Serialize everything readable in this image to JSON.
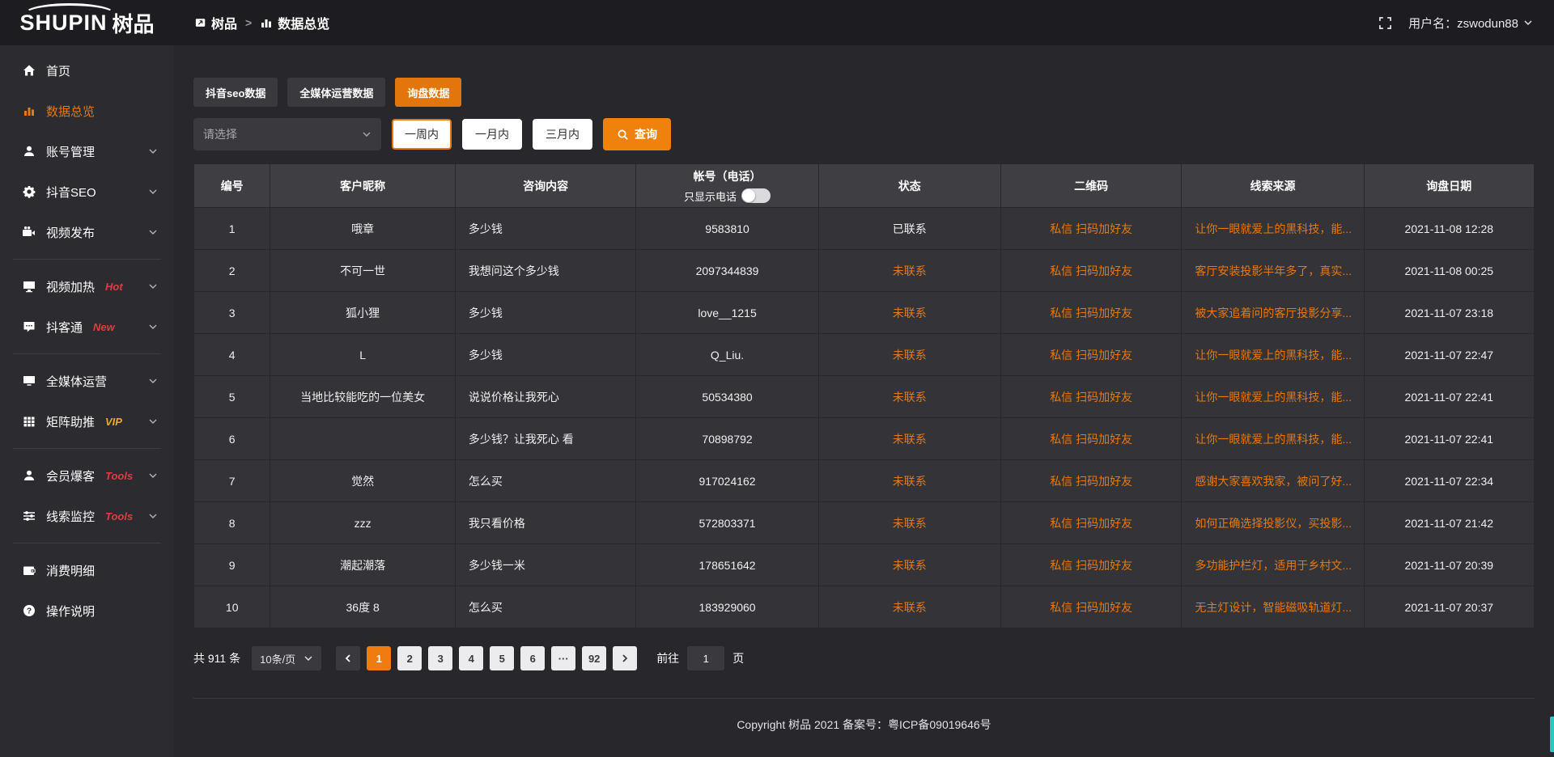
{
  "topbar": {
    "logo": {
      "en": "SHUPIN",
      "cn": "树品"
    },
    "breadcrumb": {
      "root": "树品",
      "separator": ">",
      "current": "数据总览"
    },
    "user_label": "用户名：zswodun88"
  },
  "sidebar": {
    "items": [
      {
        "type": "item",
        "label": "首页",
        "icon": "home-icon"
      },
      {
        "type": "item",
        "label": "数据总览",
        "icon": "bar-chart-icon",
        "active": true
      },
      {
        "type": "item",
        "label": "账号管理",
        "icon": "user-icon",
        "chevron": true
      },
      {
        "type": "item",
        "label": "抖音SEO",
        "icon": "gear-icon",
        "chevron": true
      },
      {
        "type": "item",
        "label": "视频发布",
        "icon": "video-camera-icon",
        "chevron": true
      },
      {
        "type": "divider"
      },
      {
        "type": "item",
        "label": "视频加热",
        "icon": "monitor-icon",
        "badge": "Hot",
        "badge_color": "#e03e3e",
        "chevron": true
      },
      {
        "type": "item",
        "label": "抖客通",
        "icon": "chat-icon",
        "badge": "New",
        "badge_color": "#e03e3e",
        "chevron": true
      },
      {
        "type": "divider"
      },
      {
        "type": "item",
        "label": "全媒体运营",
        "icon": "screen-icon",
        "chevron": true
      },
      {
        "type": "item",
        "label": "矩阵助推",
        "icon": "grid-icon",
        "badge": "VIP",
        "badge_color": "#eda82d",
        "chevron": true
      },
      {
        "type": "divider"
      },
      {
        "type": "item",
        "label": "会员爆客",
        "icon": "member-icon",
        "badge": "Tools",
        "badge_color": "#e03e3e",
        "chevron": true
      },
      {
        "type": "item",
        "label": "线索监控",
        "icon": "sliders-icon",
        "badge": "Tools",
        "badge_color": "#e03e3e",
        "chevron": true
      },
      {
        "type": "divider"
      },
      {
        "type": "item",
        "label": "消费明细",
        "icon": "wallet-icon"
      },
      {
        "type": "item",
        "label": "操作说明",
        "icon": "question-icon"
      }
    ]
  },
  "tabs": [
    {
      "label": "抖音seo数据",
      "active": false
    },
    {
      "label": "全媒体运营数据",
      "active": false
    },
    {
      "label": "询盘数据",
      "active": true
    }
  ],
  "filters": {
    "select_placeholder": "请选择",
    "ranges": [
      {
        "label": "一周内",
        "active": true
      },
      {
        "label": "一月内",
        "active": false
      },
      {
        "label": "三月内",
        "active": false
      }
    ],
    "query_label": "查询"
  },
  "table": {
    "columns": [
      "编号",
      "客户昵称",
      "咨询内容",
      "帐号（电话）",
      "状态",
      "二维码",
      "线索来源",
      "询盘日期"
    ],
    "phone_toggle_label": "只显示电话",
    "rows": [
      {
        "id": "1",
        "nickname": "哦章",
        "content": "多少钱",
        "account": "9583810",
        "status": "已联系",
        "contacted": true,
        "qr": "私信 扫码加好友",
        "source": "让你一眼就爱上的黑科技，能...",
        "date": "2021-11-08 12:28"
      },
      {
        "id": "2",
        "nickname": "不可一世",
        "content": "我想问这个多少钱",
        "account": "2097344839",
        "status": "未联系",
        "contacted": false,
        "qr": "私信 扫码加好友",
        "source": "客厅安装投影半年多了，真实...",
        "date": "2021-11-08 00:25"
      },
      {
        "id": "3",
        "nickname": "狐小狸",
        "content": "多少钱",
        "account": "love__1215",
        "status": "未联系",
        "contacted": false,
        "qr": "私信 扫码加好友",
        "source": "被大家追着问的客厅投影分享...",
        "date": "2021-11-07 23:18"
      },
      {
        "id": "4",
        "nickname": "L",
        "content": "多少钱",
        "account": "Q_Liu.",
        "status": "未联系",
        "contacted": false,
        "qr": "私信 扫码加好友",
        "source": "让你一眼就爱上的黑科技，能...",
        "date": "2021-11-07 22:47"
      },
      {
        "id": "5",
        "nickname": "当地比较能吃的一位美女",
        "content": "说说价格让我死心",
        "account": "50534380",
        "status": "未联系",
        "contacted": false,
        "qr": "私信 扫码加好友",
        "source": "让你一眼就爱上的黑科技，能...",
        "date": "2021-11-07 22:41"
      },
      {
        "id": "6",
        "nickname": "",
        "content": "多少钱？让我死心 看",
        "account": "70898792",
        "status": "未联系",
        "contacted": false,
        "qr": "私信 扫码加好友",
        "source": "让你一眼就爱上的黑科技，能...",
        "date": "2021-11-07 22:41"
      },
      {
        "id": "7",
        "nickname": "觉然",
        "content": "怎么买",
        "account": "917024162",
        "status": "未联系",
        "contacted": false,
        "qr": "私信 扫码加好友",
        "source": "感谢大家喜欢我家，被问了好...",
        "date": "2021-11-07 22:34"
      },
      {
        "id": "8",
        "nickname": "zzz",
        "content": "我只看价格",
        "account": "572803371",
        "status": "未联系",
        "contacted": false,
        "qr": "私信 扫码加好友",
        "source": "如何正确选择投影仪，买投影...",
        "date": "2021-11-07 21:42"
      },
      {
        "id": "9",
        "nickname": "潮起潮落",
        "content": "多少钱一米",
        "account": "178651642",
        "status": "未联系",
        "contacted": false,
        "qr": "私信 扫码加好友",
        "source": "多功能护栏灯，适用于乡村文...",
        "date": "2021-11-07 20:39"
      },
      {
        "id": "10",
        "nickname": "36度 8",
        "content": "怎么买",
        "account": "183929060",
        "status": "未联系",
        "contacted": false,
        "qr": "私信 扫码加好友",
        "source": "无主灯设计，智能磁吸轨道灯...",
        "date": "2021-11-07 20:37"
      }
    ]
  },
  "pagination": {
    "total_label": "共 911 条",
    "page_size_label": "10条/页",
    "pages": [
      "1",
      "2",
      "3",
      "4",
      "5",
      "6",
      "···",
      "92"
    ],
    "active_page": "1",
    "goto_label": "前往",
    "goto_value": "1",
    "goto_suffix": "页"
  },
  "footer": {
    "copyright": "Copyright 树品 2021 备案号：粤ICP备09019646号"
  },
  "colors": {
    "accent": "#e8790f",
    "active_tab": "#e2760c",
    "hot_badge": "#e03e3e",
    "vip_badge": "#eda82d"
  }
}
